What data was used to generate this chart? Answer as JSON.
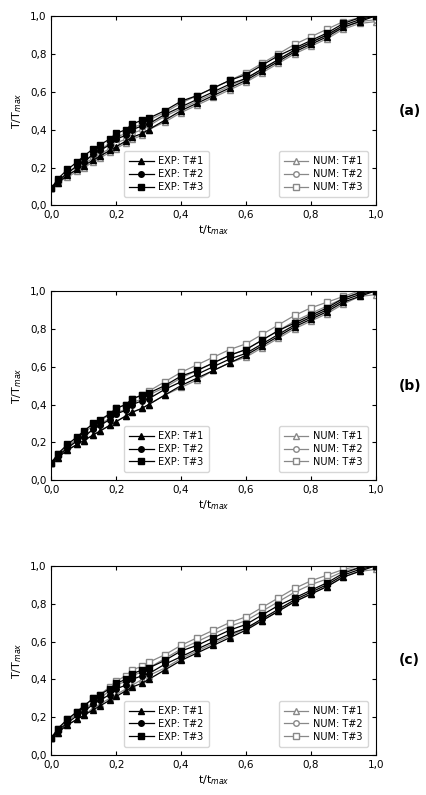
{
  "title_a": "(a)",
  "title_b": "(b)",
  "title_c": "(c)",
  "ylabel": "T/T$_{max}$",
  "xlabel": "t/t$_{max}$",
  "xlim": [
    0.0,
    1.0
  ],
  "ylim": [
    0.0,
    1.0
  ],
  "xticks": [
    0.0,
    0.2,
    0.4,
    0.6,
    0.8,
    1.0
  ],
  "yticks": [
    0.0,
    0.2,
    0.4,
    0.6,
    0.8,
    1.0
  ],
  "background_color": "#ffffff",
  "line_color_exp": "#000000",
  "line_color_num": "#888888",
  "exp_t1": [
    0.0,
    0.02,
    0.05,
    0.08,
    0.1,
    0.13,
    0.15,
    0.18,
    0.2,
    0.23,
    0.25,
    0.28,
    0.3,
    0.35,
    0.4,
    0.45,
    0.5,
    0.55,
    0.6,
    0.65,
    0.7,
    0.75,
    0.8,
    0.85,
    0.9,
    0.95,
    1.0
  ],
  "exp_t1_y": [
    0.09,
    0.12,
    0.16,
    0.19,
    0.21,
    0.24,
    0.26,
    0.29,
    0.31,
    0.34,
    0.36,
    0.38,
    0.4,
    0.45,
    0.5,
    0.54,
    0.58,
    0.62,
    0.66,
    0.71,
    0.76,
    0.81,
    0.85,
    0.89,
    0.94,
    0.97,
    1.0
  ],
  "exp_t2_y": [
    0.09,
    0.13,
    0.17,
    0.21,
    0.23,
    0.27,
    0.29,
    0.32,
    0.35,
    0.37,
    0.4,
    0.42,
    0.43,
    0.48,
    0.52,
    0.56,
    0.6,
    0.64,
    0.67,
    0.72,
    0.77,
    0.82,
    0.86,
    0.9,
    0.95,
    0.98,
    1.0
  ],
  "exp_t3_y": [
    0.09,
    0.14,
    0.19,
    0.23,
    0.26,
    0.3,
    0.32,
    0.35,
    0.38,
    0.4,
    0.43,
    0.45,
    0.46,
    0.5,
    0.55,
    0.58,
    0.62,
    0.66,
    0.69,
    0.74,
    0.79,
    0.83,
    0.87,
    0.91,
    0.96,
    0.99,
    1.0
  ],
  "num_t1_y_a": [
    0.09,
    0.12,
    0.15,
    0.18,
    0.2,
    0.23,
    0.25,
    0.28,
    0.3,
    0.33,
    0.35,
    0.37,
    0.4,
    0.44,
    0.49,
    0.53,
    0.57,
    0.61,
    0.65,
    0.7,
    0.75,
    0.8,
    0.84,
    0.88,
    0.93,
    0.96,
    0.97
  ],
  "num_t2_y_a": [
    0.09,
    0.12,
    0.16,
    0.19,
    0.22,
    0.25,
    0.27,
    0.3,
    0.33,
    0.35,
    0.38,
    0.4,
    0.42,
    0.47,
    0.51,
    0.55,
    0.59,
    0.63,
    0.67,
    0.72,
    0.77,
    0.82,
    0.86,
    0.9,
    0.94,
    0.97,
    0.98
  ],
  "num_t3_y_a": [
    0.09,
    0.13,
    0.17,
    0.21,
    0.23,
    0.27,
    0.29,
    0.33,
    0.36,
    0.38,
    0.41,
    0.43,
    0.45,
    0.49,
    0.54,
    0.58,
    0.62,
    0.66,
    0.7,
    0.75,
    0.8,
    0.85,
    0.89,
    0.93,
    0.97,
    0.99,
    1.0
  ],
  "num_t1_y_b": [
    0.09,
    0.12,
    0.16,
    0.19,
    0.21,
    0.24,
    0.26,
    0.29,
    0.31,
    0.34,
    0.36,
    0.38,
    0.4,
    0.45,
    0.49,
    0.53,
    0.58,
    0.62,
    0.65,
    0.7,
    0.75,
    0.8,
    0.84,
    0.88,
    0.93,
    0.97,
    0.98
  ],
  "num_t2_y_b": [
    0.09,
    0.13,
    0.17,
    0.21,
    0.23,
    0.27,
    0.29,
    0.33,
    0.35,
    0.38,
    0.41,
    0.43,
    0.45,
    0.49,
    0.54,
    0.58,
    0.62,
    0.66,
    0.69,
    0.74,
    0.79,
    0.84,
    0.88,
    0.92,
    0.96,
    0.99,
    1.0
  ],
  "num_t3_y_b": [
    0.09,
    0.14,
    0.18,
    0.22,
    0.25,
    0.29,
    0.31,
    0.35,
    0.38,
    0.4,
    0.43,
    0.45,
    0.47,
    0.52,
    0.57,
    0.61,
    0.65,
    0.69,
    0.72,
    0.77,
    0.82,
    0.87,
    0.91,
    0.94,
    0.97,
    1.0,
    1.0
  ],
  "num_t1_y_c": [
    0.09,
    0.12,
    0.16,
    0.19,
    0.21,
    0.25,
    0.27,
    0.3,
    0.32,
    0.35,
    0.37,
    0.4,
    0.42,
    0.46,
    0.51,
    0.55,
    0.59,
    0.63,
    0.67,
    0.71,
    0.76,
    0.81,
    0.85,
    0.89,
    0.94,
    0.97,
    0.98
  ],
  "num_t2_y_c": [
    0.09,
    0.13,
    0.18,
    0.22,
    0.24,
    0.28,
    0.3,
    0.34,
    0.37,
    0.39,
    0.42,
    0.44,
    0.46,
    0.51,
    0.56,
    0.6,
    0.64,
    0.68,
    0.71,
    0.76,
    0.81,
    0.86,
    0.9,
    0.93,
    0.97,
    0.99,
    1.0
  ],
  "num_t3_y_c": [
    0.09,
    0.14,
    0.19,
    0.23,
    0.26,
    0.3,
    0.32,
    0.36,
    0.39,
    0.42,
    0.45,
    0.47,
    0.49,
    0.53,
    0.58,
    0.62,
    0.66,
    0.7,
    0.73,
    0.78,
    0.83,
    0.88,
    0.92,
    0.95,
    0.98,
    1.0,
    1.0
  ]
}
